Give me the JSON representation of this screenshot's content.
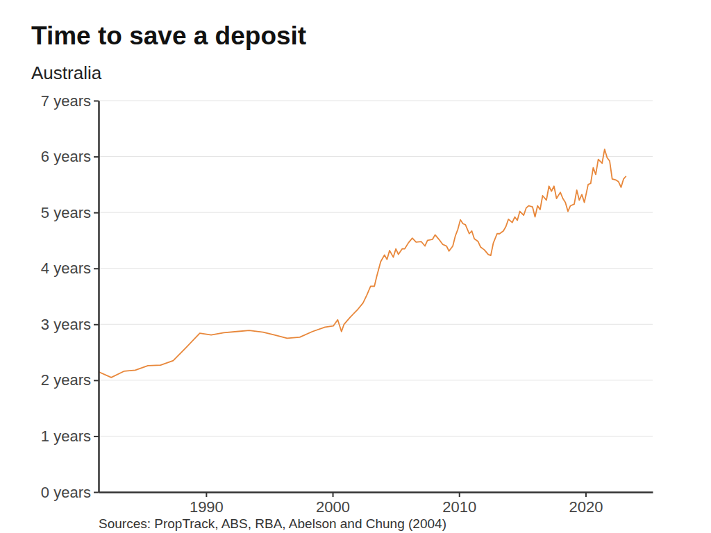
{
  "chart_data": {
    "type": "line",
    "title": "Time to save a deposit",
    "subtitle": "Australia",
    "source": "Sources: PropTrack, ABS, RBA, Abelson and Chung (2004)",
    "color": "#e8873a",
    "grid": true,
    "xlim": [
      1981.5,
      2025.3
    ],
    "xticks": [
      1990,
      2000,
      2010,
      2020
    ],
    "ylim": [
      0,
      7
    ],
    "yticks": [
      {
        "value": 0,
        "label": "0 years"
      },
      {
        "value": 1,
        "label": "1 years"
      },
      {
        "value": 2,
        "label": "2 years"
      },
      {
        "value": 3,
        "label": "3 years"
      },
      {
        "value": 4,
        "label": "4 years"
      },
      {
        "value": 5,
        "label": "5 years"
      },
      {
        "value": 6,
        "label": "6 years"
      },
      {
        "value": 7,
        "label": "7 years"
      }
    ],
    "x": [
      1981.5,
      1982.5,
      1983.5,
      1984.4,
      1985.4,
      1986.4,
      1987.4,
      1988.4,
      1989.5,
      1990.4,
      1991.4,
      1992.4,
      1993.4,
      1994.5,
      1995.4,
      1996.4,
      1997.4,
      1998.4,
      1999.4,
      2000.05,
      2000.4,
      2000.7,
      2000.9,
      2001.4,
      2002.0,
      2002.4,
      2002.7,
      2003.0,
      2003.3,
      2003.5,
      2003.8,
      2004.1,
      2004.3,
      2004.5,
      2004.8,
      2005.0,
      2005.2,
      2005.5,
      2005.7,
      2006.0,
      2006.3,
      2006.6,
      2007.0,
      2007.3,
      2007.5,
      2007.9,
      2008.1,
      2008.4,
      2008.7,
      2009.0,
      2009.2,
      2009.5,
      2009.7,
      2009.9,
      2010.1,
      2010.3,
      2010.5,
      2010.8,
      2011.0,
      2011.2,
      2011.5,
      2011.7,
      2012.0,
      2012.3,
      2012.5,
      2012.7,
      2013.0,
      2013.2,
      2013.5,
      2013.7,
      2013.9,
      2014.2,
      2014.4,
      2014.6,
      2014.8,
      2015.1,
      2015.3,
      2015.5,
      2015.8,
      2016.0,
      2016.2,
      2016.4,
      2016.6,
      2016.9,
      2017.1,
      2017.3,
      2017.5,
      2017.7,
      2018.0,
      2018.2,
      2018.4,
      2018.6,
      2018.8,
      2019.1,
      2019.3,
      2019.5,
      2019.7,
      2019.9,
      2020.2,
      2020.4,
      2020.6,
      2020.8,
      2021.0,
      2021.3,
      2021.5,
      2021.7,
      2021.9,
      2022.1,
      2022.4,
      2022.6,
      2022.8,
      2023.0,
      2023.2
    ],
    "values": [
      2.15,
      2.05,
      2.16,
      2.18,
      2.26,
      2.27,
      2.35,
      2.58,
      2.84,
      2.81,
      2.85,
      2.87,
      2.89,
      2.86,
      2.81,
      2.75,
      2.77,
      2.87,
      2.95,
      2.97,
      3.08,
      2.87,
      3.0,
      3.13,
      3.27,
      3.38,
      3.52,
      3.68,
      3.68,
      3.87,
      4.12,
      4.24,
      4.16,
      4.32,
      4.2,
      4.35,
      4.25,
      4.35,
      4.35,
      4.46,
      4.54,
      4.47,
      4.48,
      4.4,
      4.5,
      4.52,
      4.6,
      4.52,
      4.43,
      4.4,
      4.31,
      4.4,
      4.58,
      4.7,
      4.87,
      4.8,
      4.78,
      4.62,
      4.67,
      4.53,
      4.48,
      4.38,
      4.33,
      4.25,
      4.23,
      4.45,
      4.62,
      4.62,
      4.67,
      4.75,
      4.88,
      4.82,
      4.92,
      4.86,
      5.02,
      4.95,
      5.08,
      5.12,
      5.1,
      4.92,
      5.12,
      5.05,
      5.3,
      5.22,
      5.47,
      5.38,
      5.47,
      5.25,
      5.36,
      5.25,
      5.18,
      5.02,
      5.12,
      5.15,
      5.4,
      5.22,
      5.32,
      5.18,
      5.5,
      5.52,
      5.8,
      5.68,
      5.95,
      5.88,
      6.13,
      5.98,
      5.92,
      5.6,
      5.58,
      5.55,
      5.45,
      5.6,
      5.65
    ]
  }
}
